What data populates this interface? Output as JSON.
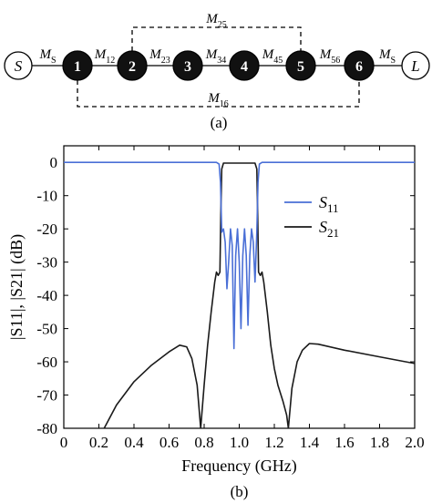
{
  "topology": {
    "caption": "(a)",
    "nodes": [
      {
        "id": "source",
        "label": "S",
        "kind": "terminal"
      },
      {
        "id": "r1",
        "label": "1",
        "kind": "resonator"
      },
      {
        "id": "r2",
        "label": "2",
        "kind": "resonator"
      },
      {
        "id": "r3",
        "label": "3",
        "kind": "resonator"
      },
      {
        "id": "r4",
        "label": "4",
        "kind": "resonator"
      },
      {
        "id": "r5",
        "label": "5",
        "kind": "resonator"
      },
      {
        "id": "r6",
        "label": "6",
        "kind": "resonator"
      },
      {
        "id": "load",
        "label": "L",
        "kind": "terminal"
      }
    ],
    "couplings": [
      {
        "from": "source",
        "to": "r1",
        "base": "M",
        "sub": "S",
        "style": "solid"
      },
      {
        "from": "r1",
        "to": "r2",
        "base": "M",
        "sub": "12",
        "style": "solid"
      },
      {
        "from": "r2",
        "to": "r3",
        "base": "M",
        "sub": "23",
        "style": "solid"
      },
      {
        "from": "r3",
        "to": "r4",
        "base": "M",
        "sub": "34",
        "style": "solid"
      },
      {
        "from": "r4",
        "to": "r5",
        "base": "M",
        "sub": "45",
        "style": "solid"
      },
      {
        "from": "r5",
        "to": "r6",
        "base": "M",
        "sub": "56",
        "style": "solid"
      },
      {
        "from": "r6",
        "to": "load",
        "base": "M",
        "sub": "S",
        "style": "solid"
      }
    ],
    "cross_couplings": [
      {
        "from": "r2",
        "to": "r5",
        "base": "M",
        "sub": "25",
        "side": "above",
        "style": "dashed"
      },
      {
        "from": "r1",
        "to": "r6",
        "base": "M",
        "sub": "16",
        "side": "below",
        "style": "dashed"
      }
    ]
  },
  "chart_data": {
    "type": "line",
    "caption": "(b)",
    "xlabel": "Frequency (GHz)",
    "ylabel": "|S11|, |S21| (dB)",
    "xlim": [
      0,
      2.0
    ],
    "ylim": [
      -80,
      5
    ],
    "xticks": [
      "0",
      "0.2",
      "0.4",
      "0.6",
      "0.8",
      "1.0",
      "1.2",
      "1.4",
      "1.6",
      "1.8",
      "2.0"
    ],
    "yticks": [
      "0",
      "-10",
      "-20",
      "-30",
      "-40",
      "-50",
      "-60",
      "-70",
      "-80"
    ],
    "grid": false,
    "legend_position": "center-right",
    "series": [
      {
        "name": "S11",
        "name_base": "S",
        "name_sub": "11",
        "color": "#4a6fd6",
        "points": [
          [
            0,
            0
          ],
          [
            0.87,
            0
          ],
          [
            0.885,
            -0.5
          ],
          [
            0.893,
            -6
          ],
          [
            0.9,
            -21
          ],
          [
            0.91,
            -20
          ],
          [
            0.92,
            -24
          ],
          [
            0.93,
            -38
          ],
          [
            0.94,
            -30
          ],
          [
            0.95,
            -20
          ],
          [
            0.96,
            -25
          ],
          [
            0.97,
            -56
          ],
          [
            0.98,
            -28
          ],
          [
            0.99,
            -20
          ],
          [
            1.0,
            -30
          ],
          [
            1.01,
            -50
          ],
          [
            1.02,
            -28
          ],
          [
            1.03,
            -20
          ],
          [
            1.04,
            -28
          ],
          [
            1.05,
            -49
          ],
          [
            1.06,
            -28
          ],
          [
            1.07,
            -20
          ],
          [
            1.08,
            -24
          ],
          [
            1.09,
            -36
          ],
          [
            1.1,
            -21
          ],
          [
            1.107,
            -6
          ],
          [
            1.115,
            -0.5
          ],
          [
            1.13,
            0
          ],
          [
            2.0,
            0
          ]
        ]
      },
      {
        "name": "S21",
        "name_base": "S",
        "name_sub": "21",
        "color": "#1a1a1a",
        "points": [
          [
            0.23,
            -80
          ],
          [
            0.3,
            -73
          ],
          [
            0.4,
            -66
          ],
          [
            0.5,
            -61
          ],
          [
            0.6,
            -57
          ],
          [
            0.66,
            -55
          ],
          [
            0.7,
            -55.5
          ],
          [
            0.73,
            -59
          ],
          [
            0.76,
            -67
          ],
          [
            0.78,
            -80
          ],
          [
            0.8,
            -67
          ],
          [
            0.82,
            -55
          ],
          [
            0.84,
            -45
          ],
          [
            0.86,
            -36
          ],
          [
            0.87,
            -33
          ],
          [
            0.88,
            -34
          ],
          [
            0.89,
            -33
          ],
          [
            0.895,
            -15
          ],
          [
            0.9,
            -2
          ],
          [
            0.91,
            -0.2
          ],
          [
            1.09,
            -0.2
          ],
          [
            1.1,
            -2
          ],
          [
            1.105,
            -15
          ],
          [
            1.11,
            -33
          ],
          [
            1.12,
            -34
          ],
          [
            1.13,
            -33
          ],
          [
            1.14,
            -36
          ],
          [
            1.16,
            -45
          ],
          [
            1.18,
            -55
          ],
          [
            1.2,
            -62
          ],
          [
            1.22,
            -67
          ],
          [
            1.25,
            -72
          ],
          [
            1.27,
            -76
          ],
          [
            1.28,
            -80
          ],
          [
            1.3,
            -68
          ],
          [
            1.33,
            -60
          ],
          [
            1.36,
            -56.5
          ],
          [
            1.4,
            -54.5
          ],
          [
            1.45,
            -54.7
          ],
          [
            1.6,
            -56.5
          ],
          [
            1.8,
            -58.5
          ],
          [
            2.0,
            -60.5
          ]
        ]
      }
    ]
  }
}
